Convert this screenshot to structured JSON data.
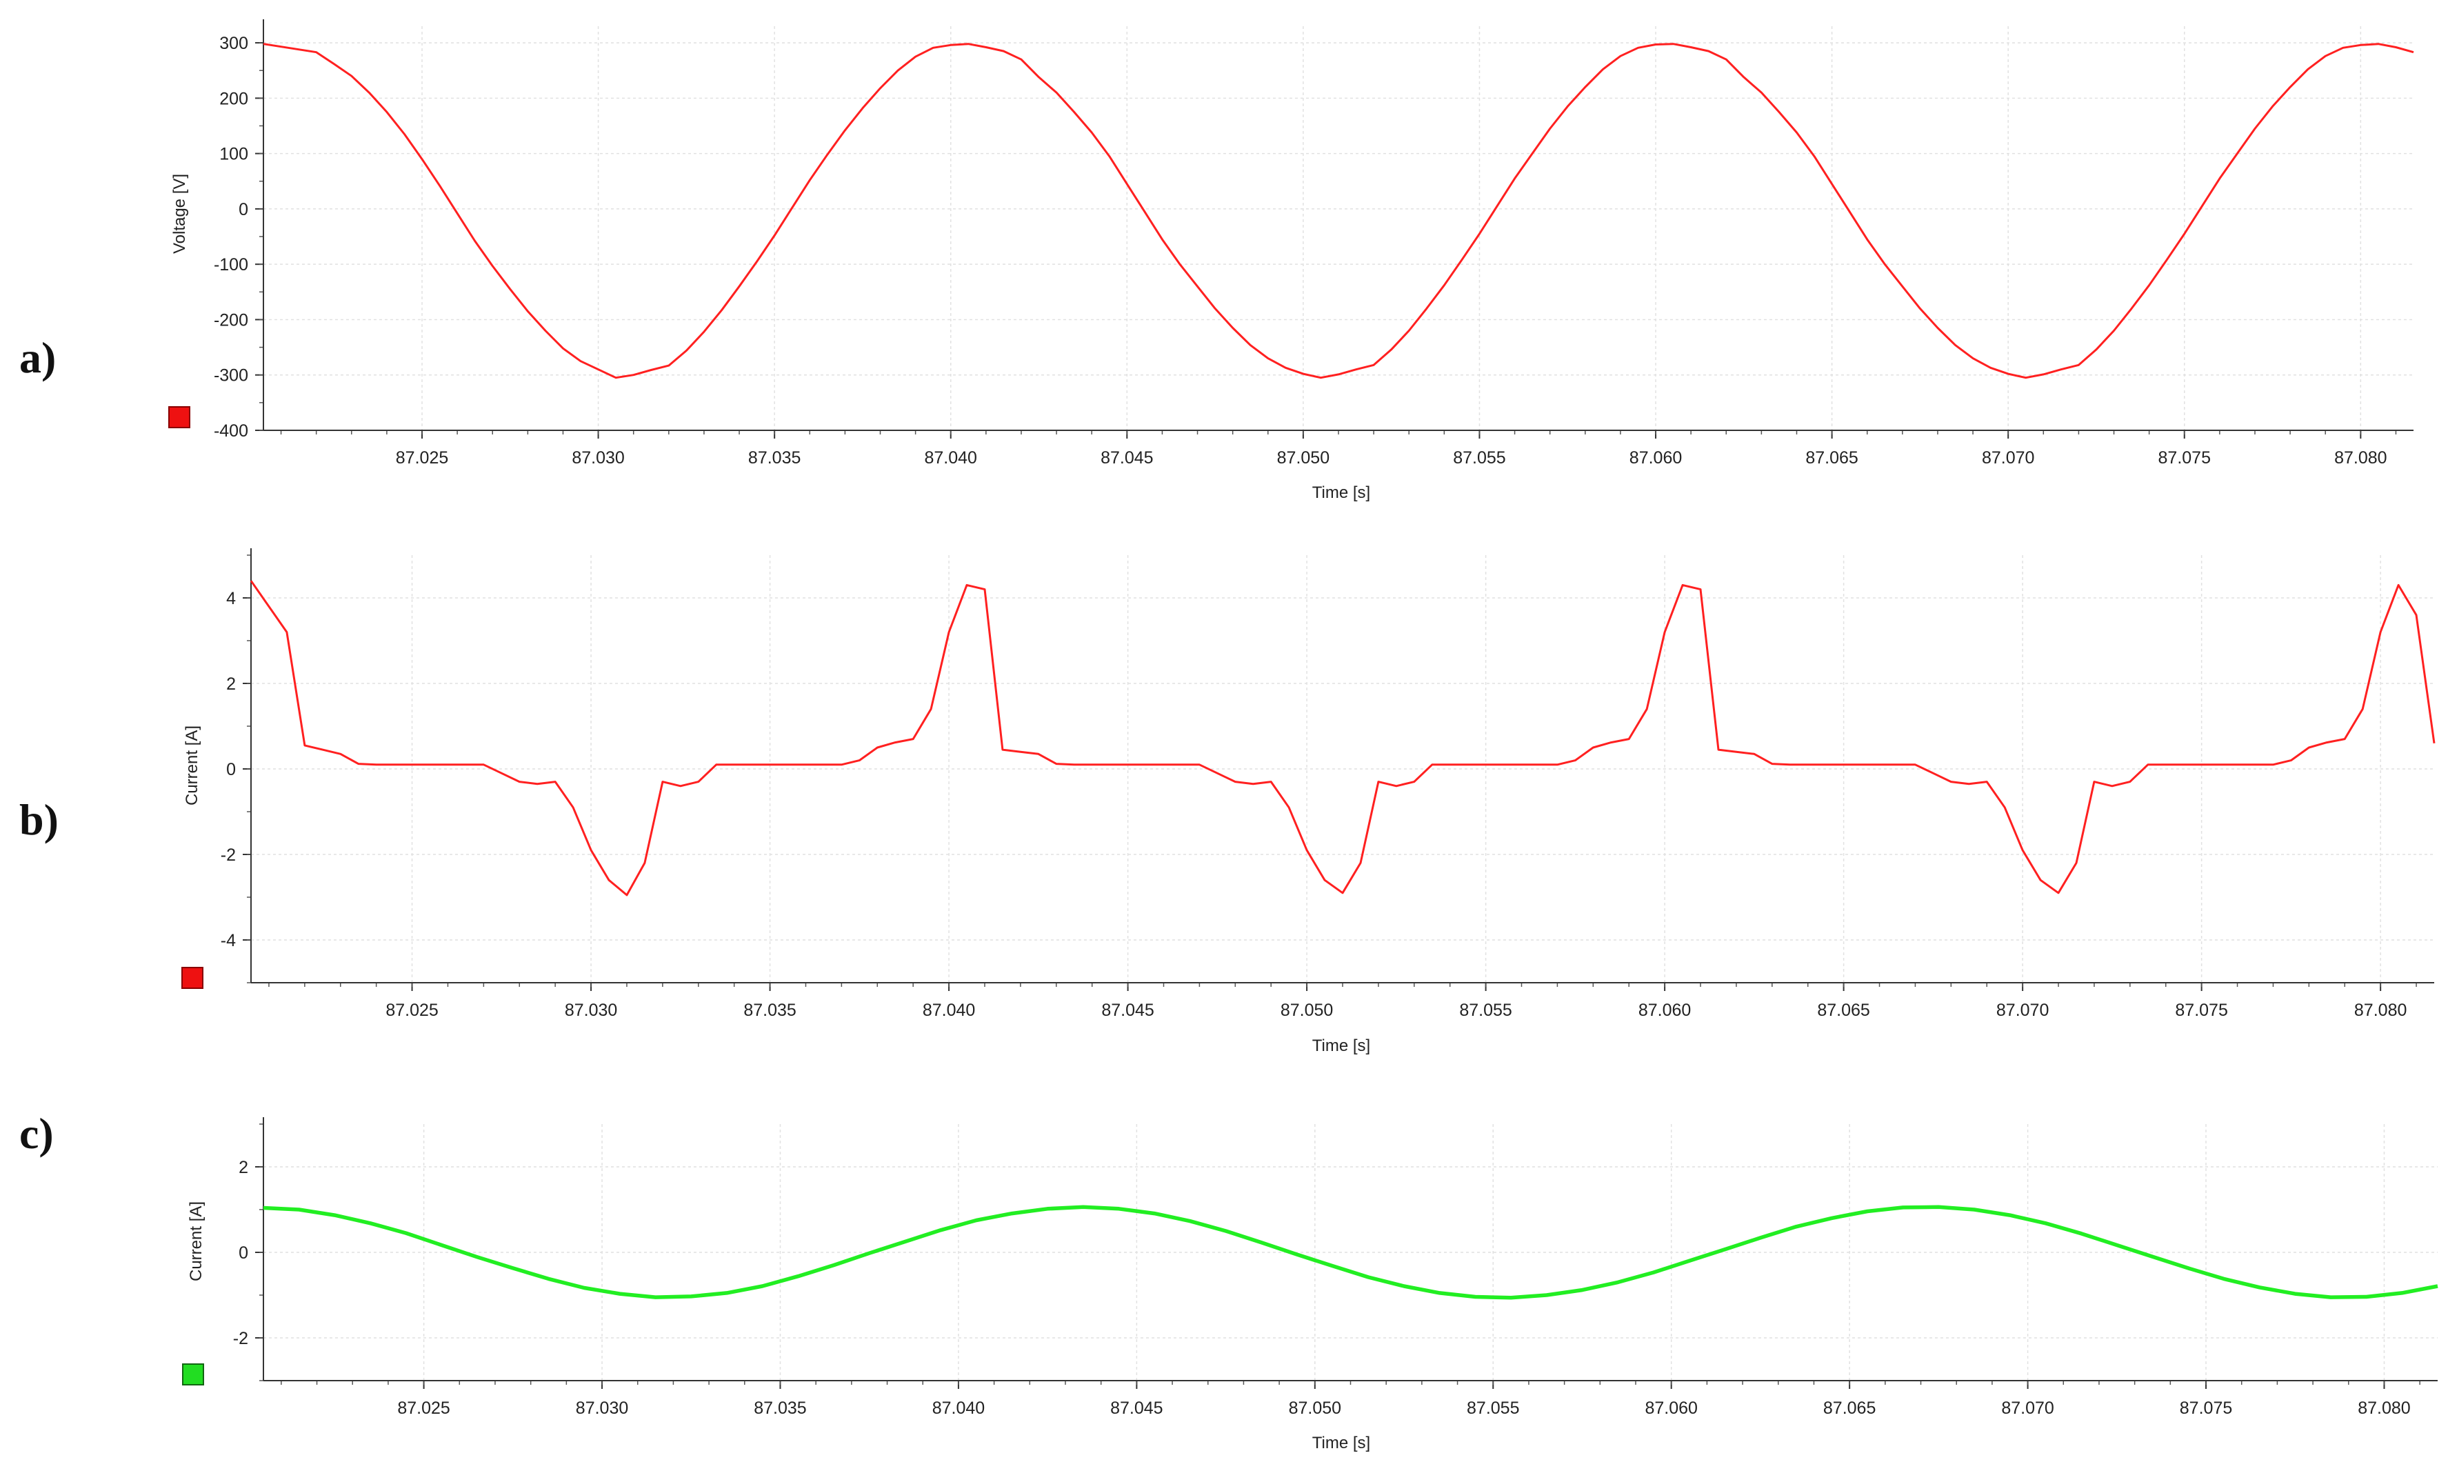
{
  "chart_data": [
    {
      "type": "line",
      "panel": "a)",
      "xlabel": "Time [s]",
      "ylabel": "Voltage [V]",
      "xlim": [
        87.0205,
        87.0815
      ],
      "ylim": [
        -400,
        330
      ],
      "xticks": [
        "87.025",
        "87.030",
        "87.035",
        "87.040",
        "87.045",
        "87.050",
        "87.055",
        "87.060",
        "87.065",
        "87.070",
        "87.075",
        "87.080"
      ],
      "yticks": [
        "300",
        "200",
        "100",
        "0",
        "-100",
        "-200",
        "-300",
        "-400"
      ],
      "grid": true,
      "series": [
        {
          "color": "#ff2020",
          "x": [
            87.0205,
            87.021,
            87.0215,
            87.022,
            87.0225,
            87.023,
            87.0235,
            87.024,
            87.0245,
            87.025,
            87.0255,
            87.026,
            87.0265,
            87.027,
            87.0275,
            87.028,
            87.0285,
            87.029,
            87.0295,
            87.03,
            87.0305,
            87.031,
            87.0315,
            87.032,
            87.0325,
            87.033,
            87.0335,
            87.034,
            87.0345,
            87.035,
            87.0355,
            87.036,
            87.0365,
            87.037,
            87.0375,
            87.038,
            87.0385,
            87.039,
            87.0395,
            87.04,
            87.0405,
            87.041,
            87.0415,
            87.042,
            87.0425,
            87.043,
            87.0435,
            87.044,
            87.0445,
            87.045,
            87.0455,
            87.046,
            87.0465,
            87.047,
            87.0475,
            87.048,
            87.0485,
            87.049,
            87.0495,
            87.05,
            87.0505,
            87.051,
            87.0515,
            87.052,
            87.0525,
            87.053,
            87.0535,
            87.054,
            87.0545,
            87.055,
            87.0555,
            87.056,
            87.0565,
            87.057,
            87.0575,
            87.058,
            87.0585,
            87.059,
            87.0595,
            87.06,
            87.0605,
            87.061,
            87.0615,
            87.062,
            87.0625,
            87.063,
            87.0635,
            87.064,
            87.0645,
            87.065,
            87.0655,
            87.066,
            87.0665,
            87.067,
            87.0675,
            87.068,
            87.0685,
            87.069,
            87.0695,
            87.07,
            87.0705,
            87.071,
            87.0715,
            87.072,
            87.0725,
            87.073,
            87.0735,
            87.074,
            87.0745,
            87.075,
            87.0755,
            87.076,
            87.0765,
            87.077,
            87.0775,
            87.078,
            87.0785,
            87.079,
            87.0795,
            87.08,
            87.0805,
            87.081,
            87.0815
          ],
          "y": [
            298,
            293,
            288,
            283,
            262,
            240,
            210,
            175,
            135,
            90,
            42,
            -8,
            -58,
            -103,
            -145,
            -185,
            -220,
            -252,
            -275,
            -290,
            -305,
            -300,
            -291,
            -283,
            -256,
            -222,
            -183,
            -140,
            -95,
            -48,
            2,
            52,
            98,
            142,
            182,
            218,
            250,
            275,
            291,
            296,
            298,
            292,
            285,
            270,
            238,
            210,
            175,
            138,
            95,
            45,
            -5,
            -55,
            -100,
            -140,
            -180,
            -215,
            -246,
            -270,
            -287,
            -298,
            -305,
            -299,
            -290,
            -282,
            -254,
            -220,
            -180,
            -138,
            -92,
            -45,
            5,
            55,
            100,
            145,
            185,
            220,
            252,
            276,
            291,
            297,
            298,
            292,
            285,
            270,
            238,
            210,
            175,
            138,
            95,
            45,
            -5,
            -55,
            -100,
            -140,
            -180,
            -215,
            -246,
            -270,
            -287,
            -298,
            -305,
            -299,
            -290,
            -282,
            -254,
            -220,
            -180,
            -138,
            -92,
            -45,
            5,
            55,
            100,
            145,
            185,
            220,
            252,
            276,
            291,
            296,
            298,
            292,
            283
          ]
        }
      ]
    },
    {
      "type": "line",
      "panel": "b)",
      "xlabel": "Time [s]",
      "ylabel": "Current [A]",
      "xlim": [
        87.0205,
        87.0815
      ],
      "ylim": [
        -5,
        5
      ],
      "xticks": [
        "87.025",
        "87.030",
        "87.035",
        "87.040",
        "87.045",
        "87.050",
        "87.055",
        "87.060",
        "87.065",
        "87.070",
        "87.075",
        "87.080"
      ],
      "yticks": [
        "4",
        "2",
        "0",
        "-2",
        "-4"
      ],
      "grid": true,
      "series": [
        {
          "color": "#ff2020",
          "x": [
            87.0205,
            87.0215,
            87.022,
            87.0225,
            87.023,
            87.0235,
            87.024,
            87.0245,
            87.025,
            87.0255,
            87.026,
            87.0265,
            87.027,
            87.0275,
            87.028,
            87.0285,
            87.029,
            87.0295,
            87.03,
            87.0305,
            87.031,
            87.0315,
            87.032,
            87.0325,
            87.033,
            87.0335,
            87.034,
            87.0345,
            87.035,
            87.0355,
            87.036,
            87.0365,
            87.037,
            87.0375,
            87.038,
            87.0385,
            87.039,
            87.0395,
            87.04,
            87.0405,
            87.041,
            87.0415,
            87.042,
            87.0425,
            87.043,
            87.0435,
            87.044,
            87.0445,
            87.045,
            87.0455,
            87.046,
            87.0465,
            87.047,
            87.0475,
            87.048,
            87.0485,
            87.049,
            87.0495,
            87.05,
            87.0505,
            87.051,
            87.0515,
            87.052,
            87.0525,
            87.053,
            87.0535,
            87.054,
            87.0545,
            87.055,
            87.0555,
            87.056,
            87.0565,
            87.057,
            87.0575,
            87.058,
            87.0585,
            87.059,
            87.0595,
            87.06,
            87.0605,
            87.061,
            87.0615,
            87.062,
            87.0625,
            87.063,
            87.0635,
            87.064,
            87.0645,
            87.065,
            87.0655,
            87.066,
            87.0665,
            87.067,
            87.0675,
            87.068,
            87.0685,
            87.069,
            87.0695,
            87.07,
            87.0705,
            87.071,
            87.0715,
            87.072,
            87.0725,
            87.073,
            87.0735,
            87.074,
            87.0745,
            87.075,
            87.0755,
            87.076,
            87.0765,
            87.077,
            87.0775,
            87.078,
            87.0785,
            87.079,
            87.0795,
            87.08,
            87.0805,
            87.081,
            87.0815
          ],
          "y": [
            4.4,
            3.2,
            0.55,
            0.45,
            0.35,
            0.12,
            0.1,
            0.1,
            0.1,
            0.1,
            0.1,
            0.1,
            0.1,
            -0.1,
            -0.3,
            -0.35,
            -0.3,
            -0.9,
            -1.9,
            -2.6,
            -2.95,
            -2.2,
            -0.3,
            -0.4,
            -0.3,
            0.1,
            0.1,
            0.1,
            0.1,
            0.1,
            0.1,
            0.1,
            0.1,
            0.2,
            0.5,
            0.62,
            0.7,
            1.4,
            3.2,
            4.3,
            4.2,
            0.45,
            0.4,
            0.35,
            0.12,
            0.1,
            0.1,
            0.1,
            0.1,
            0.1,
            0.1,
            0.1,
            0.1,
            -0.1,
            -0.3,
            -0.35,
            -0.3,
            -0.9,
            -1.9,
            -2.6,
            -2.9,
            -2.2,
            -0.3,
            -0.4,
            -0.3,
            0.1,
            0.1,
            0.1,
            0.1,
            0.1,
            0.1,
            0.1,
            0.1,
            0.2,
            0.5,
            0.62,
            0.7,
            1.4,
            3.2,
            4.3,
            4.2,
            0.45,
            0.4,
            0.35,
            0.12,
            0.1,
            0.1,
            0.1,
            0.1,
            0.1,
            0.1,
            0.1,
            0.1,
            -0.1,
            -0.3,
            -0.35,
            -0.3,
            -0.9,
            -1.9,
            -2.6,
            -2.9,
            -2.2,
            -0.3,
            -0.4,
            -0.3,
            0.1,
            0.1,
            0.1,
            0.1,
            0.1,
            0.1,
            0.1,
            0.1,
            0.2,
            0.5,
            0.62,
            0.7,
            1.4,
            3.2,
            4.3,
            3.6,
            0.6
          ]
        }
      ]
    },
    {
      "type": "line",
      "panel": "c)",
      "xlabel": "Time [s]",
      "ylabel": "Current [A]",
      "xlim": [
        87.0205,
        87.0815
      ],
      "ylim": [
        -3,
        3
      ],
      "xticks": [
        "87.025",
        "87.030",
        "87.035",
        "87.040",
        "87.045",
        "87.050",
        "87.055",
        "87.060",
        "87.065",
        "87.070",
        "87.075",
        "87.080"
      ],
      "yticks": [
        "2",
        "0",
        "-2"
      ],
      "grid": true,
      "series": [
        {
          "color": "#22ee22",
          "x": [
            87.0205,
            87.0215,
            87.0225,
            87.0235,
            87.0245,
            87.0255,
            87.0265,
            87.0275,
            87.0285,
            87.0295,
            87.0305,
            87.0315,
            87.0325,
            87.0335,
            87.0345,
            87.0355,
            87.0365,
            87.0375,
            87.0385,
            87.0395,
            87.0405,
            87.0415,
            87.0425,
            87.0435,
            87.0445,
            87.0455,
            87.0465,
            87.0475,
            87.0485,
            87.0495,
            87.0505,
            87.0515,
            87.0525,
            87.0535,
            87.0545,
            87.0555,
            87.0565,
            87.0575,
            87.0585,
            87.0595,
            87.0605,
            87.0615,
            87.0625,
            87.0635,
            87.0645,
            87.0655,
            87.0665,
            87.0675,
            87.0685,
            87.0695,
            87.0705,
            87.0715,
            87.0725,
            87.0735,
            87.0745,
            87.0755,
            87.0765,
            87.0775,
            87.0785,
            87.0795,
            87.0805,
            87.0815
          ],
          "y": [
            1.04,
            1.0,
            0.87,
            0.68,
            0.45,
            0.17,
            -0.11,
            -0.37,
            -0.62,
            -0.83,
            -0.97,
            -1.05,
            -1.03,
            -0.95,
            -0.79,
            -0.56,
            -0.3,
            -0.02,
            0.25,
            0.52,
            0.75,
            0.91,
            1.02,
            1.06,
            1.02,
            0.91,
            0.73,
            0.5,
            0.23,
            -0.05,
            -0.32,
            -0.58,
            -0.79,
            -0.95,
            -1.04,
            -1.06,
            -1.0,
            -0.88,
            -0.7,
            -0.47,
            -0.2,
            0.07,
            0.34,
            0.6,
            0.8,
            0.96,
            1.05,
            1.06,
            1.0,
            0.87,
            0.68,
            0.44,
            0.17,
            -0.1,
            -0.37,
            -0.62,
            -0.82,
            -0.97,
            -1.05,
            -1.04,
            -0.95,
            -0.79
          ]
        }
      ]
    }
  ]
}
